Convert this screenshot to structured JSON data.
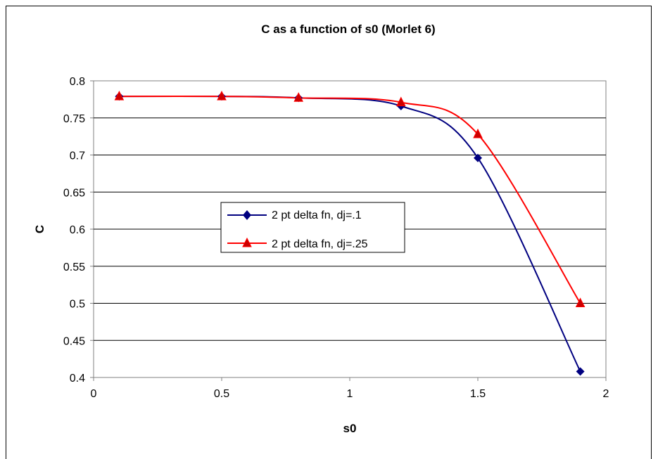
{
  "chart_data": {
    "type": "line",
    "title": "C as a function of s0 (Morlet 6)",
    "xlabel": "s0",
    "ylabel": "C",
    "xlim": [
      0,
      2
    ],
    "ylim": [
      0.4,
      0.8
    ],
    "x_ticks": [
      "0",
      "0.5",
      "1",
      "1.5",
      "2"
    ],
    "y_ticks": [
      "0.4",
      "0.45",
      "0.5",
      "0.55",
      "0.6",
      "0.65",
      "0.7",
      "0.75",
      "0.8"
    ],
    "grid": "horizontal",
    "legend_position": "center-left",
    "series": [
      {
        "name": "2 pt delta fn, dj=.1",
        "color": "#000080",
        "marker": "diamond",
        "x": [
          0.1,
          0.5,
          0.8,
          1.2,
          1.5,
          1.9
        ],
        "y": [
          0.779,
          0.779,
          0.777,
          0.766,
          0.696,
          0.408
        ]
      },
      {
        "name": "2 pt delta fn, dj=.25",
        "color": "#ff0000",
        "marker": "triangle",
        "x": [
          0.1,
          0.5,
          0.8,
          1.2,
          1.5,
          1.9
        ],
        "y": [
          0.779,
          0.779,
          0.777,
          0.771,
          0.728,
          0.5
        ]
      }
    ]
  }
}
